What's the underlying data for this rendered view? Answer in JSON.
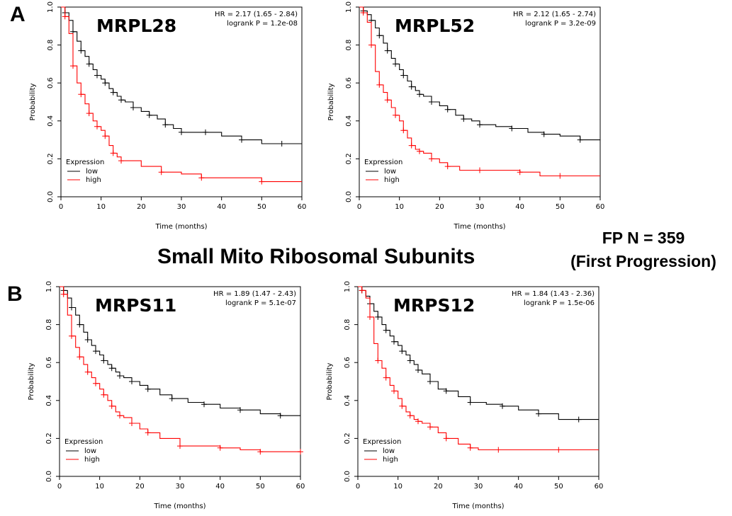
{
  "panels": {
    "a": "A",
    "b": "B"
  },
  "section_title": "Small Mito Ribosomal Subunits",
  "cohort": {
    "line1": "FP  N = 359",
    "line2": "(First Progression)"
  },
  "colors": {
    "low": "#000000",
    "high": "#ff0000",
    "axis": "#000000"
  },
  "chart_data": [
    {
      "type": "line",
      "title": "MRPL28",
      "hr_text": "HR = 2.17 (1.65 - 2.84)",
      "logrank_text": "logrank P = 1.2e-08",
      "xlabel": "Time (months)",
      "ylabel": "Probability",
      "xlim": [
        0,
        60
      ],
      "ylim": [
        0,
        1
      ],
      "x_ticks": [
        0,
        10,
        20,
        30,
        40,
        50,
        60
      ],
      "y_ticks": [
        "0.0",
        "0.2",
        "0.4",
        "0.6",
        "0.8",
        "1.0"
      ],
      "legend": {
        "title": "Expression",
        "position": "bottom-left"
      },
      "series": [
        {
          "name": "low",
          "color": "#000000",
          "x": [
            0,
            1,
            2,
            3,
            4,
            5,
            6,
            7,
            8,
            9,
            10,
            11,
            12,
            13,
            14,
            15,
            16,
            18,
            20,
            22,
            24,
            26,
            28,
            30,
            33,
            36,
            40,
            45,
            50,
            55,
            60
          ],
          "y": [
            1.0,
            0.97,
            0.93,
            0.87,
            0.82,
            0.77,
            0.74,
            0.7,
            0.67,
            0.64,
            0.62,
            0.6,
            0.57,
            0.55,
            0.53,
            0.51,
            0.5,
            0.47,
            0.45,
            0.43,
            0.41,
            0.38,
            0.36,
            0.34,
            0.34,
            0.34,
            0.32,
            0.3,
            0.28,
            0.28,
            0.28
          ]
        },
        {
          "name": "high",
          "color": "#ff0000",
          "x": [
            0,
            1,
            2,
            3,
            4,
            5,
            6,
            7,
            8,
            9,
            10,
            11,
            12,
            13,
            14,
            15,
            20,
            25,
            30,
            35,
            40,
            50,
            60
          ],
          "y": [
            1.0,
            0.95,
            0.86,
            0.69,
            0.6,
            0.54,
            0.49,
            0.44,
            0.4,
            0.37,
            0.35,
            0.32,
            0.27,
            0.23,
            0.21,
            0.19,
            0.16,
            0.13,
            0.12,
            0.1,
            0.1,
            0.08,
            0.08
          ]
        }
      ]
    },
    {
      "type": "line",
      "title": "MRPL52",
      "hr_text": "HR = 2.12 (1.65 - 2.74)",
      "logrank_text": "logrank P = 3.2e-09",
      "xlabel": "Time (months)",
      "ylabel": "Probability",
      "xlim": [
        0,
        60
      ],
      "ylim": [
        0,
        1
      ],
      "x_ticks": [
        0,
        10,
        20,
        30,
        40,
        50,
        60
      ],
      "y_ticks": [
        "0.0",
        "0.2",
        "0.4",
        "0.6",
        "0.8",
        "1.0"
      ],
      "legend": {
        "title": "Expression",
        "position": "bottom-left"
      },
      "series": [
        {
          "name": "low",
          "color": "#000000",
          "x": [
            0,
            1,
            2,
            3,
            4,
            5,
            6,
            7,
            8,
            9,
            10,
            11,
            12,
            13,
            14,
            15,
            16,
            18,
            20,
            22,
            24,
            26,
            28,
            30,
            34,
            38,
            42,
            46,
            50,
            55,
            60
          ],
          "y": [
            1.0,
            0.98,
            0.96,
            0.93,
            0.89,
            0.85,
            0.81,
            0.77,
            0.73,
            0.7,
            0.67,
            0.64,
            0.61,
            0.58,
            0.56,
            0.54,
            0.53,
            0.5,
            0.48,
            0.46,
            0.43,
            0.41,
            0.4,
            0.38,
            0.37,
            0.36,
            0.34,
            0.33,
            0.32,
            0.3,
            0.3
          ]
        },
        {
          "name": "high",
          "color": "#ff0000",
          "x": [
            0,
            1,
            2,
            3,
            4,
            5,
            6,
            7,
            8,
            9,
            10,
            11,
            12,
            13,
            14,
            15,
            16,
            18,
            20,
            22,
            25,
            30,
            35,
            40,
            45,
            50,
            60
          ],
          "y": [
            1.0,
            0.97,
            0.92,
            0.8,
            0.66,
            0.59,
            0.55,
            0.51,
            0.47,
            0.43,
            0.4,
            0.35,
            0.31,
            0.27,
            0.25,
            0.24,
            0.23,
            0.2,
            0.18,
            0.16,
            0.14,
            0.14,
            0.14,
            0.13,
            0.11,
            0.11,
            0.11
          ]
        }
      ]
    },
    {
      "type": "line",
      "title": "MRPS11",
      "hr_text": "HR = 1.89 (1.47 - 2.43)",
      "logrank_text": "logrank P = 5.1e-07",
      "xlabel": "Time (months)",
      "ylabel": "Probability",
      "xlim": [
        0,
        60
      ],
      "ylim": [
        0,
        1
      ],
      "x_ticks": [
        0,
        10,
        20,
        30,
        40,
        50,
        60
      ],
      "y_ticks": [
        "0.0",
        "0.2",
        "0.4",
        "0.6",
        "0.8",
        "1.0"
      ],
      "legend": {
        "title": "Expression",
        "position": "bottom-left"
      },
      "series": [
        {
          "name": "low",
          "color": "#000000",
          "x": [
            0,
            1,
            2,
            3,
            4,
            5,
            6,
            7,
            8,
            9,
            10,
            11,
            12,
            13,
            14,
            15,
            16,
            18,
            20,
            22,
            25,
            28,
            32,
            36,
            40,
            45,
            50,
            55,
            60
          ],
          "y": [
            1.0,
            0.98,
            0.94,
            0.89,
            0.85,
            0.8,
            0.76,
            0.72,
            0.69,
            0.66,
            0.64,
            0.61,
            0.59,
            0.57,
            0.55,
            0.53,
            0.52,
            0.5,
            0.48,
            0.46,
            0.43,
            0.41,
            0.39,
            0.38,
            0.36,
            0.35,
            0.33,
            0.32,
            0.32
          ]
        },
        {
          "name": "high",
          "color": "#ff0000",
          "x": [
            0,
            1,
            2,
            3,
            4,
            5,
            6,
            7,
            8,
            9,
            10,
            11,
            12,
            13,
            14,
            15,
            16,
            18,
            20,
            22,
            25,
            30,
            35,
            40,
            45,
            50,
            55,
            60
          ],
          "y": [
            1.0,
            0.96,
            0.85,
            0.74,
            0.68,
            0.63,
            0.59,
            0.55,
            0.52,
            0.49,
            0.46,
            0.43,
            0.4,
            0.37,
            0.34,
            0.32,
            0.31,
            0.28,
            0.25,
            0.23,
            0.2,
            0.16,
            0.16,
            0.15,
            0.14,
            0.13,
            0.13,
            0.13
          ]
        }
      ]
    },
    {
      "type": "line",
      "title": "MRPS12",
      "hr_text": "HR = 1.84 (1.43 - 2.36)",
      "logrank_text": "logrank P = 1.5e-06",
      "xlabel": "Time (months)",
      "ylabel": "Probability",
      "xlim": [
        0,
        60
      ],
      "ylim": [
        0,
        1
      ],
      "x_ticks": [
        0,
        10,
        20,
        30,
        40,
        50,
        60
      ],
      "y_ticks": [
        "0.0",
        "0.2",
        "0.4",
        "0.6",
        "0.8",
        "1.0"
      ],
      "legend": {
        "title": "Expression",
        "position": "bottom-left"
      },
      "series": [
        {
          "name": "low",
          "color": "#000000",
          "x": [
            0,
            1,
            2,
            3,
            4,
            5,
            6,
            7,
            8,
            9,
            10,
            11,
            12,
            13,
            14,
            15,
            16,
            18,
            20,
            22,
            25,
            28,
            32,
            36,
            40,
            45,
            50,
            55,
            60
          ],
          "y": [
            1.0,
            0.98,
            0.95,
            0.91,
            0.87,
            0.84,
            0.8,
            0.77,
            0.74,
            0.71,
            0.69,
            0.66,
            0.64,
            0.61,
            0.59,
            0.56,
            0.54,
            0.5,
            0.46,
            0.45,
            0.42,
            0.39,
            0.38,
            0.37,
            0.35,
            0.33,
            0.3,
            0.3,
            0.3
          ]
        },
        {
          "name": "high",
          "color": "#ff0000",
          "x": [
            0,
            1,
            2,
            3,
            4,
            5,
            6,
            7,
            8,
            9,
            10,
            11,
            12,
            13,
            14,
            15,
            16,
            18,
            20,
            22,
            25,
            28,
            30,
            35,
            40,
            50,
            60
          ],
          "y": [
            1.0,
            0.98,
            0.94,
            0.84,
            0.7,
            0.61,
            0.57,
            0.52,
            0.48,
            0.45,
            0.41,
            0.37,
            0.34,
            0.32,
            0.3,
            0.29,
            0.28,
            0.26,
            0.23,
            0.2,
            0.17,
            0.15,
            0.14,
            0.14,
            0.14,
            0.14,
            0.14
          ]
        }
      ]
    }
  ]
}
